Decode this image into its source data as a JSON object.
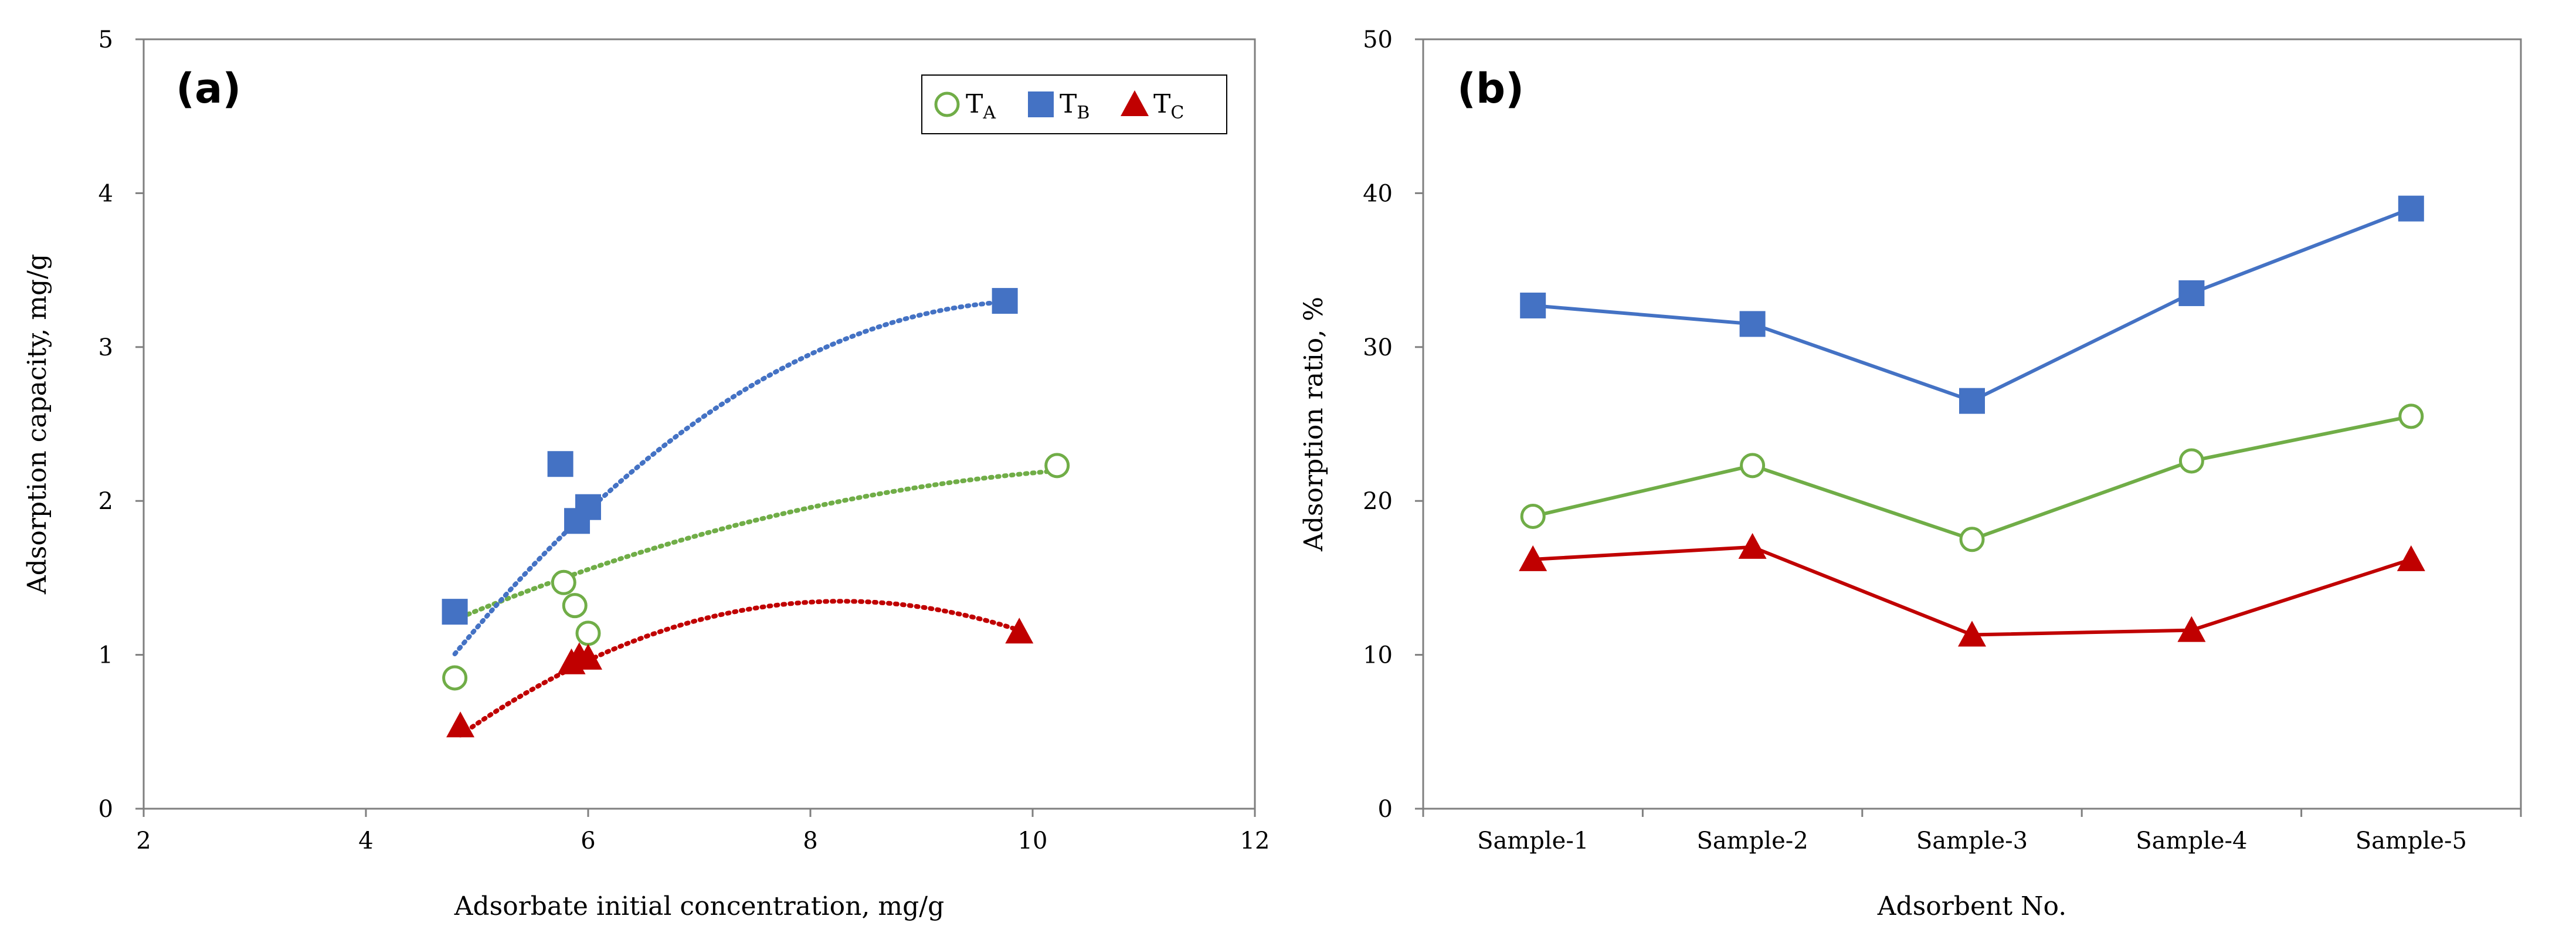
{
  "chart_data": [
    {
      "type": "scatter",
      "panel_label": "(a)",
      "xlabel": "Adsorbate initial concentration, mg/g",
      "ylabel": "Adsorption capacity, mg/g",
      "xlim": [
        2,
        12
      ],
      "ylim": [
        0,
        5
      ],
      "xticks": [
        "2",
        "4",
        "6",
        "8",
        "10",
        "12"
      ],
      "yticks": [
        "0",
        "1",
        "2",
        "3",
        "4",
        "5"
      ],
      "legend_position": "top-right",
      "series": [
        {
          "name": "T",
          "sub": "A",
          "marker": "circle-open",
          "color": "#70ad47",
          "x": [
            4.8,
            5.78,
            5.88,
            6.0,
            10.22
          ],
          "y": [
            0.85,
            1.47,
            1.32,
            1.14,
            2.23
          ],
          "trend": [
            -0.0222,
            0.512,
            -0.718
          ]
        },
        {
          "name": "T",
          "sub": "B",
          "marker": "square",
          "color": "#4472c4",
          "x": [
            4.8,
            5.75,
            5.9,
            6.0,
            9.75
          ],
          "y": [
            1.28,
            2.24,
            1.87,
            1.96,
            3.3
          ],
          "trend": [
            -0.0837,
            1.68,
            -5.13
          ]
        },
        {
          "name": "T",
          "sub": "C",
          "marker": "triangle",
          "color": "#c00000",
          "x": [
            4.85,
            5.85,
            5.92,
            6.0,
            9.88
          ],
          "y": [
            0.54,
            0.95,
            0.99,
            0.98,
            1.15
          ],
          "trend": [
            -0.0739,
            1.224,
            -3.72
          ]
        }
      ]
    },
    {
      "type": "line",
      "panel_label": "(b)",
      "xlabel": "Adsorbent No.",
      "ylabel": "Adsorption ratio, %",
      "ylim": [
        0,
        50
      ],
      "yticks": [
        "0",
        "10",
        "20",
        "30",
        "40",
        "50"
      ],
      "categories": [
        "Sample-1",
        "Sample-2",
        "Sample-3",
        "Sample-4",
        "Sample-5"
      ],
      "series": [
        {
          "name": "T_B",
          "marker": "square",
          "color": "#4472c4",
          "values": [
            32.7,
            31.5,
            26.5,
            33.5,
            39.0
          ]
        },
        {
          "name": "T_A",
          "marker": "circle-open",
          "color": "#70ad47",
          "values": [
            19.0,
            22.3,
            17.5,
            22.6,
            25.5
          ]
        },
        {
          "name": "T_C",
          "marker": "triangle",
          "color": "#c00000",
          "values": [
            16.2,
            17.0,
            11.3,
            11.6,
            16.2
          ]
        }
      ]
    }
  ]
}
